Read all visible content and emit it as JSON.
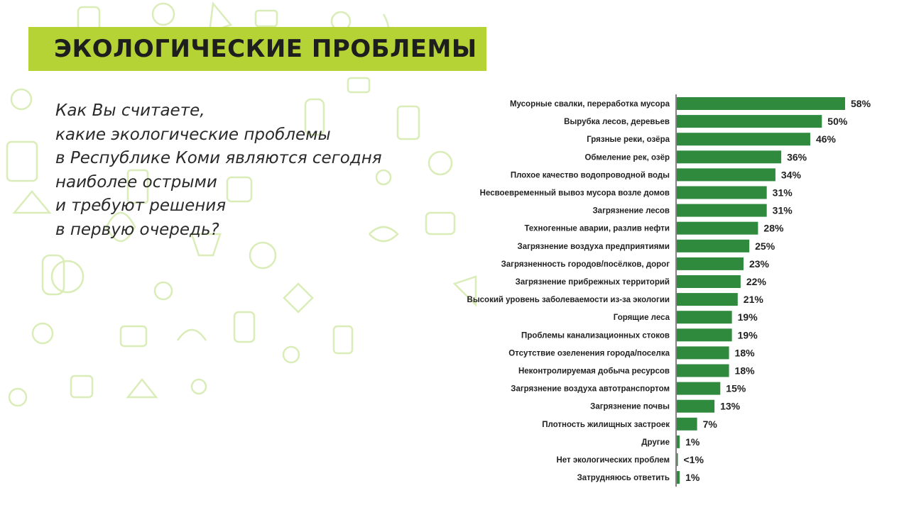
{
  "header": {
    "title": "ЭКОЛОГИЧЕСКИЕ ПРОБЛЕМЫ"
  },
  "question": {
    "lines": [
      "Как Вы считаете,",
      "какие экологические проблемы",
      "в Республике Коми являются сегодня",
      "наиболее острыми",
      "и требуют решения",
      "в первую очередь?"
    ]
  },
  "colors": {
    "accent": "#b5d334",
    "bar": "#2f8a3e",
    "doodle": "#d6ebb0"
  },
  "chart_data": {
    "type": "bar",
    "orientation": "horizontal",
    "title": "",
    "xlabel": "",
    "ylabel": "",
    "xlim": [
      0,
      58
    ],
    "grid": false,
    "categories": [
      "Мусорные свалки, переработка мусора",
      "Вырубка лесов, деревьев",
      "Грязные реки, озёра",
      "Обмеление рек, озёр",
      "Плохое качество водопроводной воды",
      "Несвоевременный вывоз мусора возле домов",
      "Загрязнение лесов",
      "Техногенные аварии, разлив нефти",
      "Загрязнение воздуха предприятиями",
      "Загрязненность городов/посёлков, дорог",
      "Загрязнение прибрежных территорий",
      "Высокий уровень заболеваемости из-за экологии",
      "Горящие леса",
      "Проблемы канализационных стоков",
      "Отсутствие озеленения города/поселка",
      "Неконтролируемая добыча ресурсов",
      "Загрязнение воздуха автотранспортом",
      "Загрязнение почвы",
      "Плотность жилищных застроек",
      "Другие",
      "Нет экологических проблем",
      "Затрудняюсь ответить"
    ],
    "values": [
      58,
      50,
      46,
      36,
      34,
      31,
      31,
      28,
      25,
      23,
      22,
      21,
      19,
      19,
      18,
      18,
      15,
      13,
      7,
      1,
      0.3,
      1
    ],
    "value_labels": [
      "58%",
      "50%",
      "46%",
      "36%",
      "34%",
      "31%",
      "31%",
      "28%",
      "25%",
      "23%",
      "22%",
      "21%",
      "19%",
      "19%",
      "18%",
      "18%",
      "15%",
      "13%",
      "7%",
      "1%",
      "<1%",
      "1%"
    ]
  }
}
